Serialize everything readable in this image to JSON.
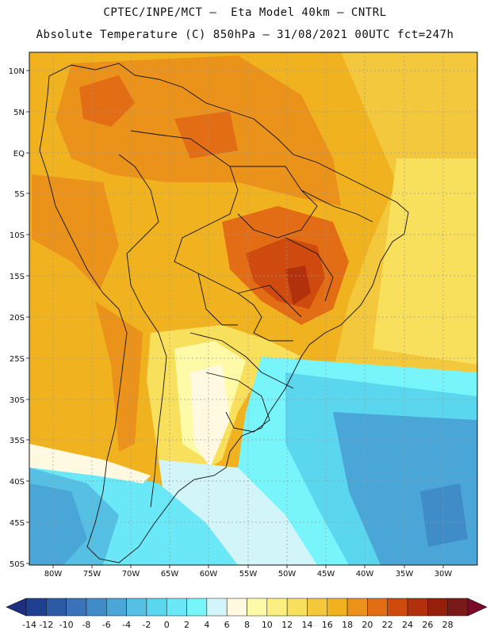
{
  "header": {
    "line1": "CPTEC/INPE/MCT –  Eta Model 40km – CNTRL",
    "line2": "Absolute Temperature (C) 850hPa – 31/08/2021 00UTC fct=247h"
  },
  "map": {
    "lat_labels": [
      "10N",
      "5N",
      "EQ",
      "5S",
      "10S",
      "15S",
      "20S",
      "25S",
      "30S",
      "35S",
      "40S",
      "45S",
      "50S"
    ],
    "lon_labels": [
      "80W",
      "75W",
      "70W",
      "65W",
      "60W",
      "55W",
      "50W",
      "45W",
      "40W",
      "35W",
      "30W"
    ]
  },
  "colorbar": {
    "labels": [
      "-14",
      "-12",
      "-10",
      "-8",
      "-6",
      "-4",
      "-2",
      "0",
      "2",
      "4",
      "6",
      "8",
      "10",
      "12",
      "14",
      "16",
      "18",
      "20",
      "22",
      "24",
      "26",
      "28"
    ],
    "colors": [
      "#1f3f8f",
      "#2d5aa5",
      "#3b73b9",
      "#3f8cc8",
      "#4aa6d6",
      "#55c0e3",
      "#5ad6ee",
      "#6be8f7",
      "#78f5fb",
      "#d2f5fa",
      "#fff9e2",
      "#fffaa8",
      "#fcef82",
      "#f8df5c",
      "#f4c83c",
      "#f0b21e",
      "#eb921a",
      "#e26d14",
      "#cf4a0e",
      "#b3300c",
      "#94200c",
      "#7a1a18"
    ],
    "under_color": "#1f2f7f",
    "over_color": "#7a0a2a"
  }
}
